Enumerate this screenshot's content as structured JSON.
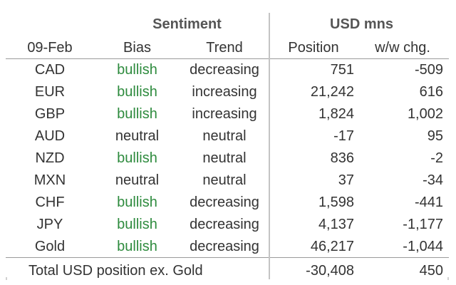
{
  "groups": {
    "sentiment": "Sentiment",
    "usd": "USD mns"
  },
  "headers": [
    "09-Feb",
    "Bias",
    "Trend",
    "Position",
    "w/w chg."
  ],
  "rows": [
    {
      "ccy": "CAD",
      "bias": "bullish",
      "trend": "decreasing",
      "position": "751",
      "chg": "-509"
    },
    {
      "ccy": "EUR",
      "bias": "bullish",
      "trend": "increasing",
      "position": "21,242",
      "chg": "616"
    },
    {
      "ccy": "GBP",
      "bias": "bullish",
      "trend": "increasing",
      "position": "1,824",
      "chg": "1,002"
    },
    {
      "ccy": "AUD",
      "bias": "neutral",
      "trend": "neutral",
      "position": "-17",
      "chg": "95"
    },
    {
      "ccy": "NZD",
      "bias": "bullish",
      "trend": "neutral",
      "position": "836",
      "chg": "-2"
    },
    {
      "ccy": "MXN",
      "bias": "neutral",
      "trend": "neutral",
      "position": "37",
      "chg": "-34"
    },
    {
      "ccy": "CHF",
      "bias": "bullish",
      "trend": "decreasing",
      "position": "1,598",
      "chg": "-441"
    },
    {
      "ccy": "JPY",
      "bias": "bullish",
      "trend": "decreasing",
      "position": "4,137",
      "chg": "-1,177"
    },
    {
      "ccy": "Gold",
      "bias": "bullish",
      "trend": "decreasing",
      "position": "46,217",
      "chg": "-1,044"
    }
  ],
  "total": {
    "label": "Total USD position ex. Gold",
    "position": "-30,408",
    "chg": "450"
  },
  "colors": {
    "bullish": "#2e8b3e",
    "text": "#333333",
    "rule": "#9a9a9a",
    "divider": "#c4c4c4"
  }
}
